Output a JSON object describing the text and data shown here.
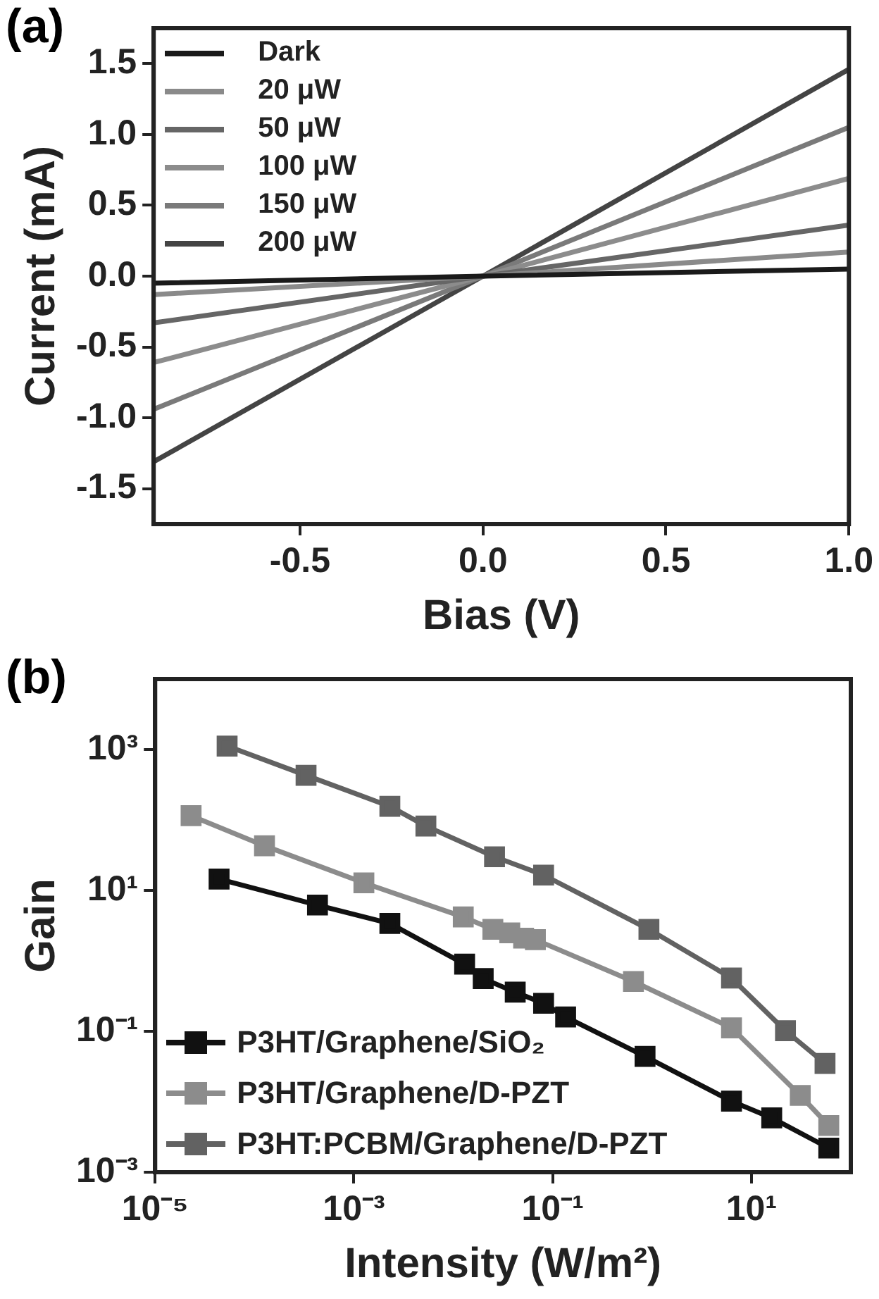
{
  "chart_data": [
    {
      "type": "line",
      "title": "(a)",
      "xlabel": "Bias (V)",
      "ylabel": "Current (mA)",
      "x": [
        -0.9,
        0,
        1.0
      ],
      "xlim": [
        -0.9,
        1.0
      ],
      "xticks": [
        -0.5,
        {
          "value": 0,
          "label": "0.0"
        },
        0.5,
        {
          "value": 1,
          "label": "1.0"
        }
      ],
      "ylim": [
        -1.75,
        1.75
      ],
      "yticks": [
        -1.5,
        {
          "value": -1,
          "label": "-1.0"
        },
        -0.5,
        {
          "value": 0,
          "label": "0.0"
        },
        0.5,
        {
          "value": 1,
          "label": "1.0"
        },
        1.5
      ],
      "grid": false,
      "legend": "top left",
      "marker": "none",
      "line_style": "solid",
      "series": [
        {
          "name": "Dark",
          "color": "#1a1a1a",
          "values": [
            -0.05,
            0,
            0.05
          ]
        },
        {
          "name": "20 μW",
          "color": "#8a8a8a",
          "values": [
            -0.13,
            0,
            0.17
          ]
        },
        {
          "name": "50 μW",
          "color": "#666666",
          "values": [
            -0.33,
            0,
            0.36
          ]
        },
        {
          "name": "100 μW",
          "color": "#8c8c8c",
          "values": [
            -0.61,
            0,
            0.69
          ]
        },
        {
          "name": "150 μW",
          "color": "#7a7a7a",
          "values": [
            -0.94,
            0,
            1.05
          ]
        },
        {
          "name": "200 μW",
          "color": "#444444",
          "values": [
            -1.31,
            0,
            1.46
          ]
        }
      ]
    },
    {
      "type": "line",
      "title": "(b)",
      "xlabel": "Intensity (W/m²)",
      "ylabel": "Gain",
      "log": "xy",
      "xlim": [
        1e-05,
        100
      ],
      "xticks": [
        {
          "value": 1e-05,
          "label": "10⁻⁵"
        },
        {
          "value": 0.001,
          "label": "10⁻³"
        },
        {
          "value": 0.1,
          "label": "10⁻¹"
        },
        {
          "value": 10,
          "label": "10¹"
        }
      ],
      "ylim": [
        0.001,
        10000
      ],
      "yticks": [
        {
          "value": 0.001,
          "label": "10⁻³"
        },
        {
          "value": 0.1,
          "label": "10⁻¹"
        },
        {
          "value": 10,
          "label": "10¹"
        },
        {
          "value": 1000,
          "label": "10³"
        }
      ],
      "grid": false,
      "legend": "bottom left",
      "marker": "square",
      "line_style": "solid",
      "series": [
        {
          "name": "P3HT/Graphene/SiO₂",
          "color": "#111111",
          "x": [
            4.4e-05,
            0.00043,
            0.0023,
            0.013,
            0.02,
            0.042,
            0.081,
            0.135,
            0.85,
            6.3,
            16,
            60
          ],
          "values": [
            14.5,
            6.2,
            3.4,
            0.9,
            0.56,
            0.36,
            0.25,
            0.16,
            0.044,
            0.0102,
            0.0059,
            0.0022
          ]
        },
        {
          "name": "P3HT/Graphene/D-PZT",
          "color": "#8c8c8c",
          "x": [
            2.3e-05,
            0.000126,
            0.00126,
            0.0126,
            0.025,
            0.037,
            0.051,
            0.067,
            0.65,
            6.3,
            31,
            60
          ],
          "values": [
            115,
            43,
            12.8,
            4.2,
            2.8,
            2.5,
            2.1,
            2.0,
            0.51,
            0.112,
            0.0123,
            0.0046
          ]
        },
        {
          "name": "P3HT:PCBM/Graphene/D-PZT",
          "color": "#626262",
          "x": [
            5.3e-05,
            0.00033,
            0.0023,
            0.0053,
            0.026,
            0.081,
            0.93,
            6.3,
            22,
            55
          ],
          "values": [
            1120,
            430,
            156,
            82,
            30,
            16.5,
            2.8,
            0.57,
            0.102,
            0.035
          ]
        }
      ]
    }
  ]
}
